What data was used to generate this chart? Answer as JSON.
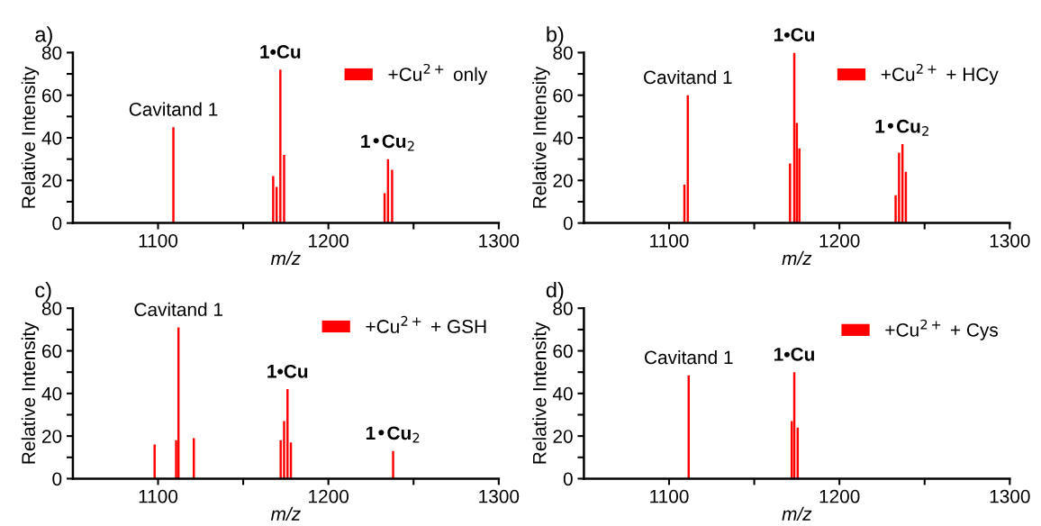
{
  "chart_data": [
    {
      "type": "bar",
      "title": "a)",
      "xlabel": "m/z",
      "ylabel": "Relative Intensity",
      "xlim": [
        1050,
        1300
      ],
      "ylim": [
        0,
        80
      ],
      "xticks": [
        {
          "value": 1100,
          "label": "1100"
        },
        {
          "value": 1150,
          "label": null
        },
        {
          "value": 1200,
          "label": "1200"
        },
        {
          "value": 1250,
          "label": null
        },
        {
          "value": 1300,
          "label": "1300"
        }
      ],
      "yticks": [
        0,
        {
          "value": 10,
          "label": null
        },
        20,
        {
          "value": 30,
          "label": null
        },
        40,
        {
          "value": 50,
          "label": null
        },
        60,
        {
          "value": 70,
          "label": null
        },
        80
      ],
      "legend": "top right",
      "grid": false,
      "series": [
        {
          "name": "+Cu$^{2+}$ only",
          "color": "#ff0000",
          "x": [
            1109,
            1167.6,
            1169.6,
            1171.8,
            1174,
            1233,
            1235,
            1237.4
          ],
          "values": [
            45,
            22,
            17,
            72,
            32,
            14,
            30,
            25
          ]
        }
      ],
      "annotations": [
        {
          "text": "Cavitand 1",
          "x": 1109,
          "y": 45
        },
        {
          "text": "1•Cu",
          "x": 1171.8,
          "y": 72
        },
        {
          "text": "1•Cu$_{2}$",
          "x": 1235,
          "y": 30
        }
      ]
    },
    {
      "type": "bar",
      "title": "b)",
      "xlabel": "m/z",
      "ylabel": "Relative Intensity",
      "xlim": [
        1050,
        1300
      ],
      "ylim": [
        0,
        80
      ],
      "xticks": [
        {
          "value": 1100,
          "label": "1100"
        },
        {
          "value": 1150,
          "label": null
        },
        {
          "value": 1200,
          "label": "1200"
        },
        {
          "value": 1250,
          "label": null
        },
        {
          "value": 1300,
          "label": "1300"
        }
      ],
      "yticks": [
        0,
        {
          "value": 10,
          "label": null
        },
        20,
        {
          "value": 30,
          "label": null
        },
        40,
        {
          "value": 50,
          "label": null
        },
        60,
        {
          "value": 70,
          "label": null
        },
        80
      ],
      "legend": "top right",
      "grid": false,
      "series": [
        {
          "name": "+Cu$^{2+}$ + HCy",
          "color": "#ff0000",
          "x": [
            1109,
            1111,
            1171,
            1173.5,
            1175,
            1176.5,
            1233,
            1235,
            1237,
            1239
          ],
          "values": [
            18,
            60,
            28,
            80,
            47,
            35,
            13,
            33,
            37,
            24
          ]
        }
      ],
      "annotations": [
        {
          "text": "Cavitand 1",
          "x": 1111,
          "y": 60
        },
        {
          "text": "1•Cu",
          "x": 1173.5,
          "y": 80
        },
        {
          "text": "1•Cu$_{2}$",
          "x": 1237,
          "y": 37
        }
      ]
    },
    {
      "type": "bar",
      "title": "c)",
      "xlabel": "m/z",
      "ylabel": "Relative Intensity",
      "xlim": [
        1050,
        1300
      ],
      "ylim": [
        0,
        80
      ],
      "xticks": [
        {
          "value": 1100,
          "label": "1100"
        },
        {
          "value": 1150,
          "label": null
        },
        {
          "value": 1200,
          "label": "1200"
        },
        {
          "value": 1250,
          "label": null
        },
        {
          "value": 1300,
          "label": "1300"
        }
      ],
      "yticks": [
        0,
        {
          "value": 10,
          "label": null
        },
        20,
        {
          "value": 30,
          "label": null
        },
        40,
        {
          "value": 50,
          "label": null
        },
        60,
        {
          "value": 70,
          "label": null
        },
        80
      ],
      "legend": "top right",
      "grid": false,
      "series": [
        {
          "name": "+Cu$^{2+}$ + GSH",
          "color": "#ff0000",
          "x": [
            1098,
            1110.6,
            1112,
            1121,
            1172,
            1174,
            1176,
            1178,
            1238
          ],
          "values": [
            16,
            18,
            71,
            19,
            18,
            27,
            42,
            17,
            13
          ]
        }
      ],
      "annotations": [
        {
          "text": "Cavitand 1",
          "x": 1112,
          "y": 71
        },
        {
          "text": "1•Cu",
          "x": 1176,
          "y": 42
        },
        {
          "text": "1•Cu$_{2}$",
          "x": 1238,
          "y": 13
        }
      ]
    },
    {
      "type": "bar",
      "title": "d)",
      "xlabel": "m/z",
      "ylabel": "Relative Intensity",
      "xlim": [
        1050,
        1300
      ],
      "ylim": [
        0,
        80
      ],
      "xticks": [
        {
          "value": 1100,
          "label": "1100"
        },
        {
          "value": 1150,
          "label": null
        },
        {
          "value": 1200,
          "label": "1200"
        },
        {
          "value": 1250,
          "label": null
        },
        {
          "value": 1300,
          "label": "1300"
        }
      ],
      "yticks": [
        0,
        {
          "value": 10,
          "label": null
        },
        20,
        {
          "value": 30,
          "label": null
        },
        40,
        {
          "value": 50,
          "label": null
        },
        60,
        {
          "value": 70,
          "label": null
        },
        80
      ],
      "legend": "top right",
      "grid": false,
      "series": [
        {
          "name": "+Cu$^{2+}$ + Cys",
          "color": "#ff0000",
          "x": [
            1111.5,
            1172,
            1173.5,
            1175.5
          ],
          "values": [
            48.5,
            27,
            50,
            24
          ]
        }
      ],
      "annotations": [
        {
          "text": "Cavitand 1",
          "x": 1111.5,
          "y": 48.5
        },
        {
          "text": "1•Cu",
          "x": 1173.5,
          "y": 50
        }
      ]
    }
  ]
}
